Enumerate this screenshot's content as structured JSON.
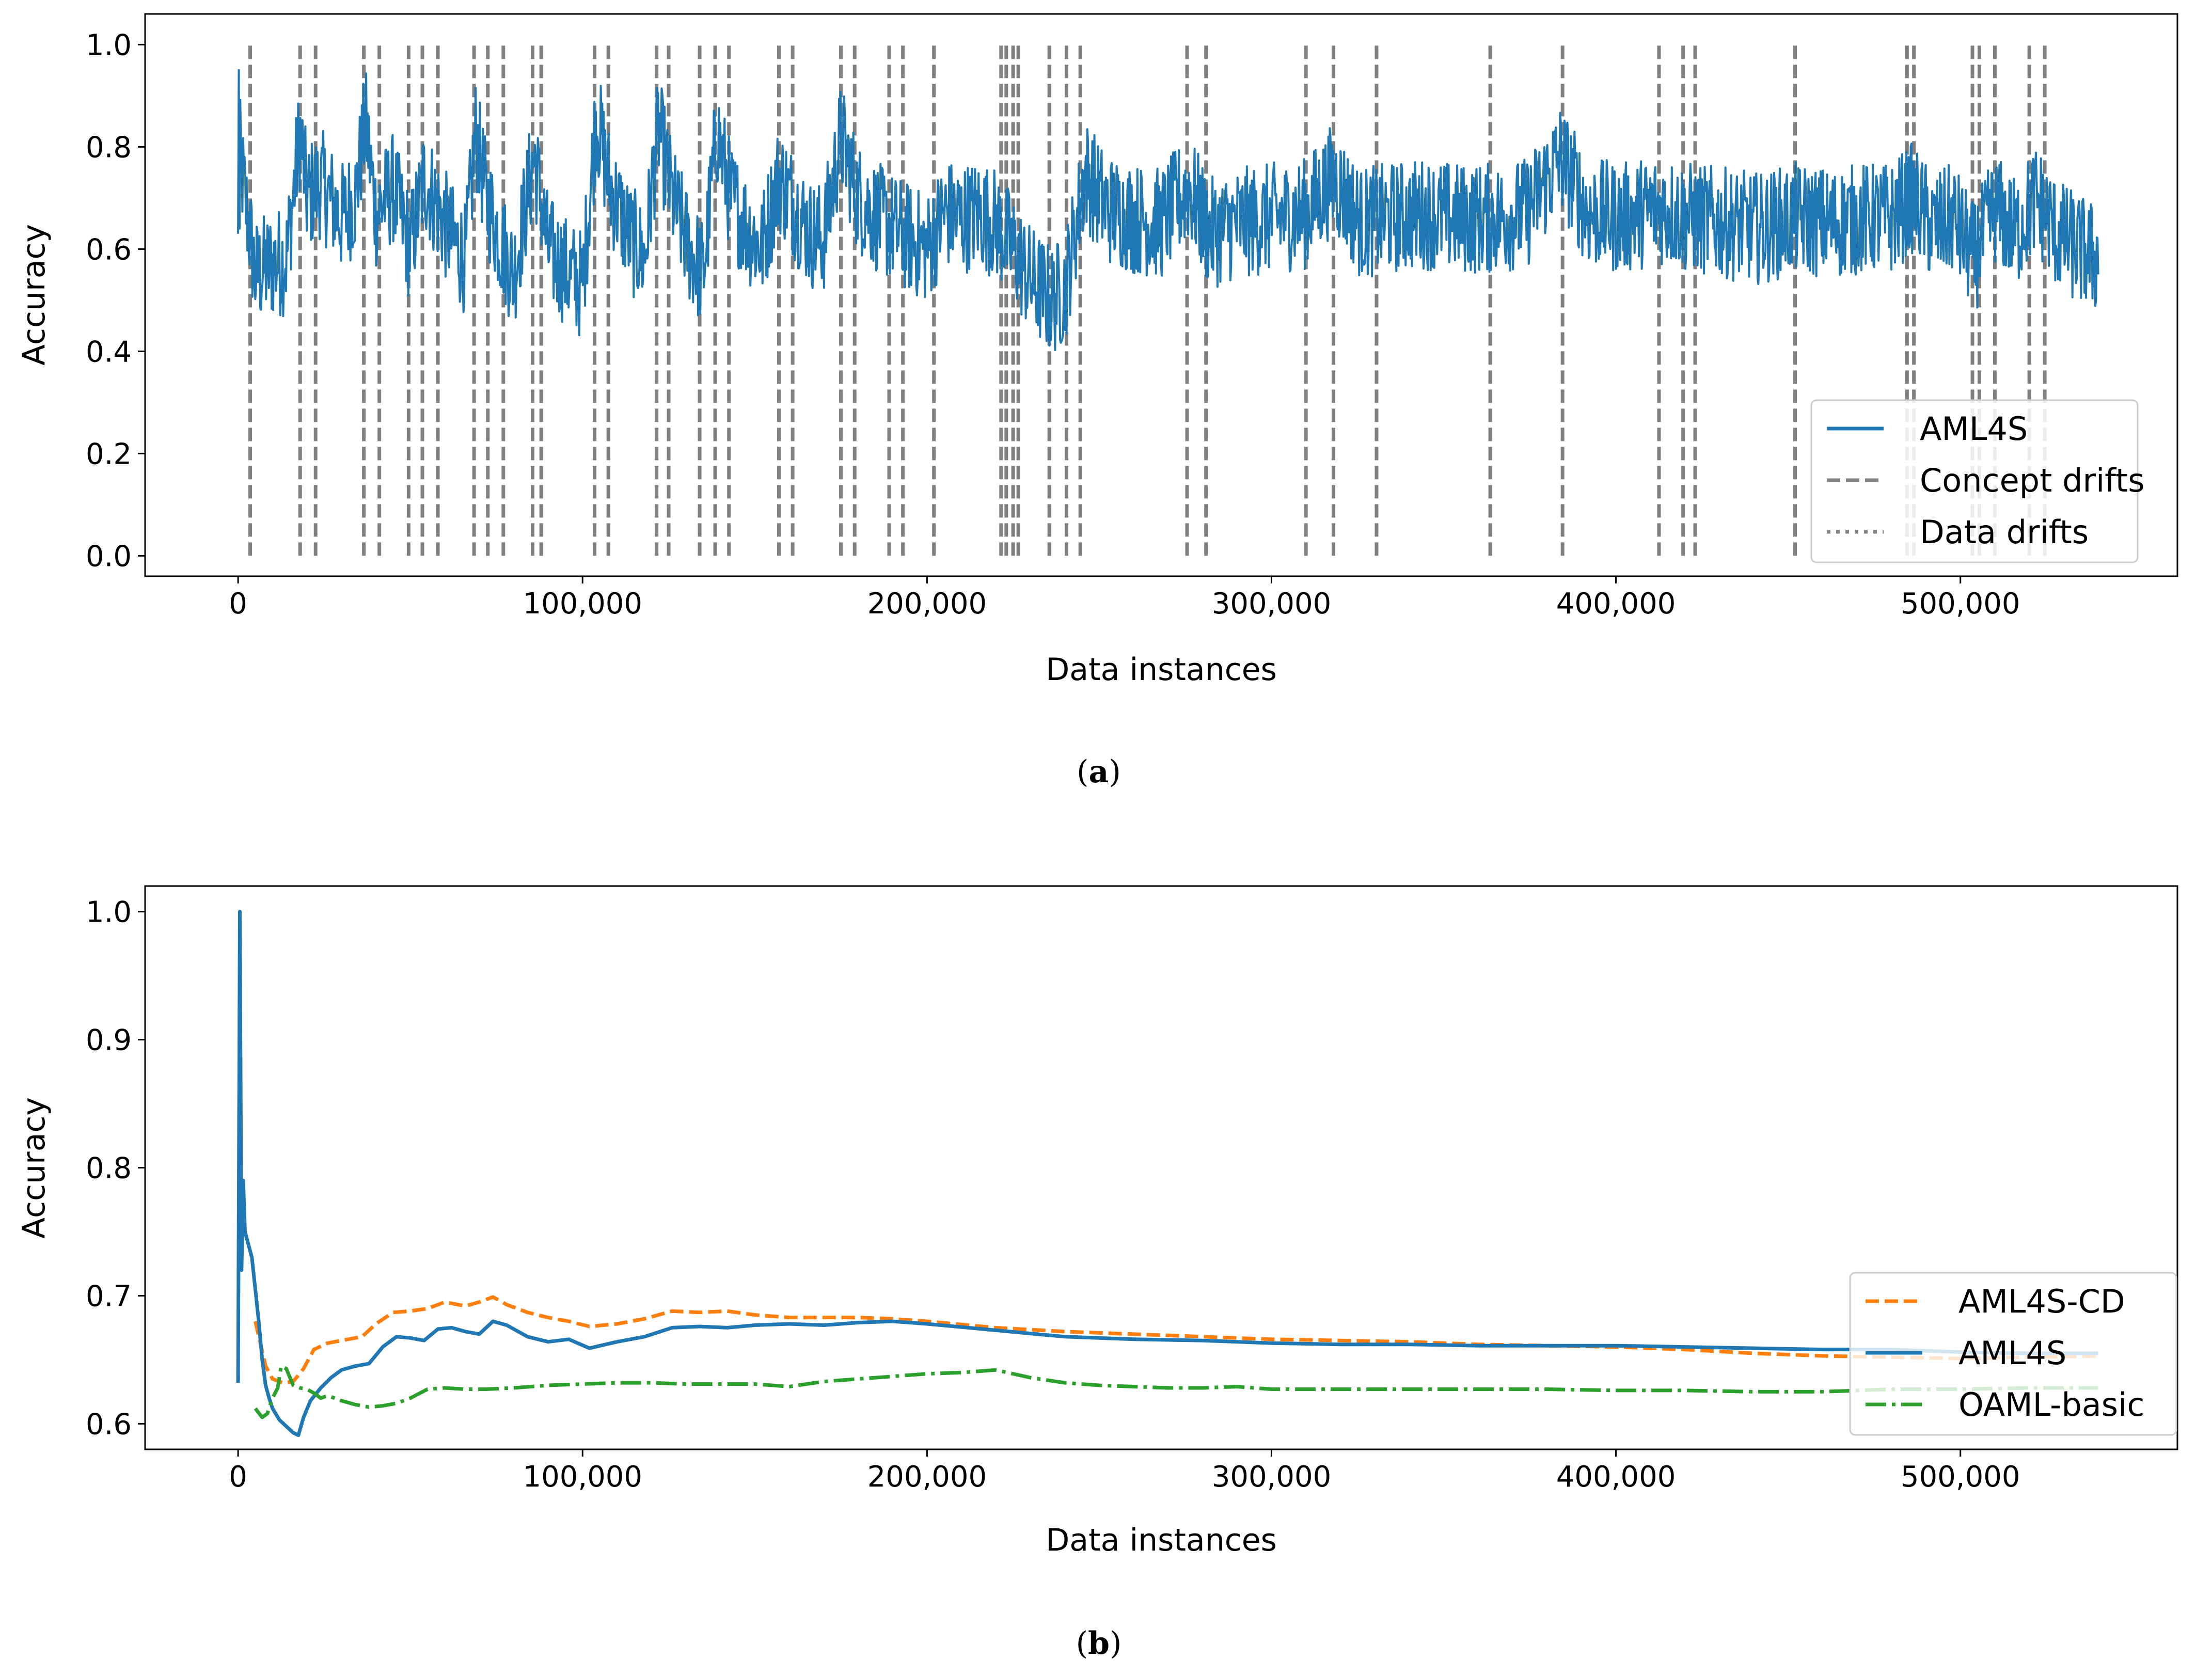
{
  "chart_data": [
    {
      "panel": "(a)",
      "panel_letter": "a",
      "type": "line",
      "xlabel": "Data instances",
      "ylabel": "Accuracy",
      "xlim": [
        -27000,
        563000
      ],
      "ylim": [
        -0.04,
        1.06
      ],
      "xticks": [
        0,
        100000,
        200000,
        300000,
        400000,
        500000
      ],
      "xtick_labels": [
        "0",
        "100,000",
        "200,000",
        "300,000",
        "400,000",
        "500,000"
      ],
      "yticks": [
        0.0,
        0.2,
        0.4,
        0.6,
        0.8,
        1.0
      ],
      "ytick_labels": [
        "0.0",
        "0.2",
        "0.4",
        "0.6",
        "0.8",
        "1.0"
      ],
      "legend_position": "lower right",
      "legend": [
        {
          "label": "AML4S",
          "style": "solid",
          "color": "#1f77b4"
        },
        {
          "label": "Concept drifts",
          "style": "dashed",
          "color": "#808080"
        },
        {
          "label": "Data drifts",
          "style": "dotted",
          "color": "#808080"
        }
      ],
      "concept_drifts": [
        3500,
        18000,
        22500,
        36500,
        41000,
        49500,
        53500,
        58000,
        68500,
        72500,
        77000,
        85500,
        88000,
        103500,
        107500,
        121500,
        125000,
        134000,
        138500,
        142500,
        157000,
        161000,
        175000,
        179000,
        189000,
        193000,
        202000,
        221500,
        223000,
        225000,
        226500,
        235500,
        240500,
        244500,
        275500,
        281000,
        310000,
        318000,
        330500,
        363500,
        384500,
        412500,
        419500,
        423000,
        452000,
        484500,
        486500,
        503500,
        505500,
        510000,
        520000,
        524500
      ],
      "series": [
        {
          "name": "AML4S",
          "color": "#1f77b4",
          "x": [
            0,
            2000,
            5000,
            10000,
            14000,
            18000,
            20000,
            24000,
            30000,
            34000,
            37000,
            40000,
            45000,
            50000,
            54000,
            58000,
            62000,
            66000,
            69000,
            72000,
            76000,
            80000,
            86000,
            90000,
            96000,
            100000,
            104000,
            108000,
            114000,
            118000,
            122000,
            126000,
            131000,
            135000,
            139000,
            143000,
            148000,
            152000,
            157000,
            162000,
            166000,
            170000,
            175000,
            180000,
            186000,
            190000,
            195000,
            200000,
            205000,
            210000,
            215000,
            220000,
            225000,
            230000,
            236000,
            240000,
            246000,
            252000,
            260000,
            268000,
            276000,
            282000,
            290000,
            300000,
            310000,
            318000,
            326000,
            334000,
            344000,
            354000,
            364000,
            374000,
            384000,
            392000,
            402000,
            412000,
            422000,
            432000,
            442000,
            452000,
            462000,
            472000,
            480000,
            486000,
            492000,
            498000,
            504000,
            510000,
            516000,
            522000,
            528000,
            534000,
            540000
          ],
          "values": [
            0.82,
            0.7,
            0.55,
            0.57,
            0.58,
            0.83,
            0.7,
            0.73,
            0.66,
            0.7,
            0.85,
            0.67,
            0.72,
            0.6,
            0.74,
            0.68,
            0.62,
            0.58,
            0.83,
            0.7,
            0.62,
            0.55,
            0.78,
            0.6,
            0.55,
            0.53,
            0.86,
            0.72,
            0.62,
            0.58,
            0.84,
            0.7,
            0.6,
            0.55,
            0.83,
            0.7,
            0.64,
            0.6,
            0.74,
            0.68,
            0.63,
            0.62,
            0.82,
            0.7,
            0.66,
            0.64,
            0.62,
            0.6,
            0.67,
            0.66,
            0.67,
            0.65,
            0.6,
            0.54,
            0.5,
            0.52,
            0.75,
            0.68,
            0.66,
            0.65,
            0.72,
            0.63,
            0.65,
            0.66,
            0.67,
            0.74,
            0.65,
            0.66,
            0.67,
            0.66,
            0.66,
            0.67,
            0.78,
            0.67,
            0.66,
            0.68,
            0.66,
            0.65,
            0.64,
            0.66,
            0.65,
            0.66,
            0.66,
            0.7,
            0.64,
            0.66,
            0.58,
            0.68,
            0.63,
            0.7,
            0.63,
            0.6,
            0.58
          ]
        }
      ]
    },
    {
      "panel": "(b)",
      "panel_letter": "b",
      "type": "line",
      "xlabel": "Data instances",
      "ylabel": "Accuracy",
      "xlim": [
        -27000,
        563000
      ],
      "ylim": [
        0.58,
        1.02
      ],
      "xticks": [
        0,
        100000,
        200000,
        300000,
        400000,
        500000
      ],
      "xtick_labels": [
        "0",
        "100,000",
        "200,000",
        "300,000",
        "400,000",
        "500,000"
      ],
      "yticks": [
        0.6,
        0.7,
        0.8,
        0.9,
        1.0
      ],
      "ytick_labels": [
        "0.6",
        "0.7",
        "0.8",
        "0.9",
        "1.0"
      ],
      "legend_position": "lower right",
      "series": [
        {
          "name": "AML4S-CD",
          "color": "#ff7f0e",
          "style": "dashed",
          "x": [
            5000,
            8000,
            10000,
            13000,
            16000,
            19000,
            22000,
            26000,
            30000,
            36000,
            40000,
            45000,
            50000,
            55000,
            60000,
            66000,
            70000,
            74000,
            78000,
            84000,
            90000,
            96000,
            102000,
            110000,
            118000,
            126000,
            134000,
            142000,
            150000,
            160000,
            170000,
            180000,
            190000,
            200000,
            220000,
            240000,
            260000,
            280000,
            300000,
            320000,
            340000,
            360000,
            380000,
            400000,
            420000,
            440000,
            460000,
            480000,
            500000,
            520000,
            540000
          ],
          "values": [
            0.68,
            0.645,
            0.635,
            0.632,
            0.633,
            0.643,
            0.658,
            0.663,
            0.665,
            0.668,
            0.678,
            0.687,
            0.688,
            0.69,
            0.695,
            0.692,
            0.695,
            0.699,
            0.693,
            0.687,
            0.683,
            0.68,
            0.676,
            0.678,
            0.682,
            0.688,
            0.687,
            0.688,
            0.685,
            0.683,
            0.683,
            0.683,
            0.682,
            0.68,
            0.675,
            0.672,
            0.67,
            0.668,
            0.666,
            0.665,
            0.664,
            0.662,
            0.661,
            0.66,
            0.658,
            0.655,
            0.653,
            0.652,
            0.651,
            0.652,
            0.653
          ]
        },
        {
          "name": "AML4S",
          "color": "#1f77b4",
          "style": "solid",
          "x": [
            0,
            500,
            1000,
            1500,
            2000,
            3000,
            4000,
            5000,
            6000,
            7000,
            8000,
            9000,
            10000,
            12000,
            14000,
            16000,
            17500,
            19000,
            21000,
            24000,
            27000,
            30000,
            34000,
            38000,
            42000,
            46000,
            50000,
            54000,
            58000,
            62000,
            66000,
            70000,
            74000,
            78000,
            84000,
            90000,
            96000,
            102000,
            110000,
            118000,
            126000,
            134000,
            142000,
            150000,
            160000,
            170000,
            180000,
            190000,
            200000,
            220000,
            240000,
            260000,
            280000,
            300000,
            320000,
            340000,
            360000,
            380000,
            400000,
            420000,
            440000,
            460000,
            480000,
            500000,
            520000,
            540000
          ],
          "values": [
            0.632,
            1.0,
            0.72,
            0.79,
            0.75,
            0.74,
            0.73,
            0.705,
            0.68,
            0.65,
            0.63,
            0.62,
            0.612,
            0.603,
            0.598,
            0.593,
            0.591,
            0.605,
            0.618,
            0.628,
            0.636,
            0.642,
            0.645,
            0.647,
            0.66,
            0.668,
            0.667,
            0.665,
            0.674,
            0.675,
            0.672,
            0.67,
            0.68,
            0.677,
            0.668,
            0.664,
            0.666,
            0.659,
            0.664,
            0.668,
            0.675,
            0.676,
            0.675,
            0.677,
            0.678,
            0.677,
            0.679,
            0.68,
            0.678,
            0.673,
            0.668,
            0.666,
            0.665,
            0.663,
            0.662,
            0.662,
            0.661,
            0.661,
            0.661,
            0.66,
            0.659,
            0.658,
            0.658,
            0.656,
            0.655,
            0.655
          ]
        },
        {
          "name": "OAML-basic",
          "color": "#2ca02c",
          "style": "dashdot",
          "x": [
            5000,
            7000,
            8500,
            10000,
            11500,
            12500,
            14000,
            16000,
            18000,
            20000,
            22000,
            24000,
            26000,
            30000,
            34000,
            38000,
            42000,
            46000,
            50000,
            55000,
            60000,
            66000,
            72000,
            80000,
            90000,
            100000,
            110000,
            120000,
            130000,
            140000,
            150000,
            160000,
            170000,
            180000,
            190000,
            200000,
            210000,
            220000,
            230000,
            240000,
            250000,
            260000,
            270000,
            280000,
            290000,
            300000,
            320000,
            340000,
            360000,
            380000,
            400000,
            420000,
            440000,
            460000,
            480000,
            500000,
            520000,
            540000
          ],
          "values": [
            0.612,
            0.605,
            0.608,
            0.62,
            0.628,
            0.645,
            0.643,
            0.63,
            0.628,
            0.627,
            0.624,
            0.62,
            0.622,
            0.618,
            0.615,
            0.613,
            0.614,
            0.616,
            0.62,
            0.627,
            0.628,
            0.627,
            0.627,
            0.628,
            0.63,
            0.631,
            0.632,
            0.632,
            0.631,
            0.631,
            0.631,
            0.629,
            0.633,
            0.635,
            0.637,
            0.639,
            0.64,
            0.642,
            0.636,
            0.632,
            0.63,
            0.629,
            0.628,
            0.628,
            0.629,
            0.627,
            0.627,
            0.627,
            0.627,
            0.627,
            0.626,
            0.626,
            0.625,
            0.625,
            0.627,
            0.627,
            0.628,
            0.628
          ]
        }
      ]
    }
  ]
}
